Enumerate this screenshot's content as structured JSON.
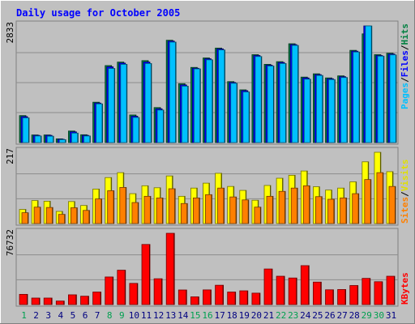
{
  "title": "Daily usage for October 2005",
  "legend": {
    "top": [
      "Pages",
      "Files",
      "Hits"
    ],
    "middle": [
      "Sites",
      "Visits"
    ],
    "bottom": [
      "KBytes"
    ]
  },
  "separator": "/",
  "colors": {
    "background": "#c0c0c0",
    "plot": "#ffffff",
    "title": "#0000ff",
    "hits": "#008040",
    "files": "#0000ff",
    "pages": "#00c0ff",
    "visits": "#ffff00",
    "sites": "#ff8000",
    "kbytes": "#ff0000",
    "weekend_label": "#00a050",
    "weekday_label": "#000080"
  },
  "chart_data": [
    {
      "type": "bar",
      "name": "pages-files-hits",
      "categories": [
        "1",
        "2",
        "3",
        "4",
        "5",
        "6",
        "7",
        "8",
        "9",
        "10",
        "11",
        "12",
        "13",
        "14",
        "15",
        "16",
        "17",
        "18",
        "19",
        "20",
        "21",
        "22",
        "23",
        "24",
        "25",
        "26",
        "27",
        "28",
        "29",
        "30",
        "31"
      ],
      "weekend": [
        "1",
        "8",
        "9",
        "15",
        "16",
        "22",
        "23",
        "29",
        "30"
      ],
      "ylim": [
        0,
        2833
      ],
      "max_label": "2833",
      "series": [
        {
          "name": "Hits",
          "values": [
            655,
            185,
            185,
            90,
            280,
            190,
            980,
            1870,
            1955,
            670,
            1990,
            850,
            2485,
            1430,
            1825,
            2055,
            2295,
            1480,
            1280,
            2135,
            1900,
            1965,
            2400,
            1590,
            1670,
            1570,
            1620,
            2240,
            2640,
            2135,
            2170
          ]
        },
        {
          "name": "Files",
          "values": [
            630,
            175,
            175,
            80,
            260,
            175,
            960,
            1840,
            1930,
            640,
            1955,
            820,
            2465,
            1400,
            1805,
            2035,
            2275,
            1460,
            1260,
            2115,
            1880,
            1945,
            2380,
            1570,
            1650,
            1550,
            1600,
            2220,
            2833,
            2115,
            2150
          ]
        },
        {
          "name": "Pages",
          "values": [
            600,
            160,
            155,
            70,
            230,
            160,
            940,
            1800,
            1900,
            610,
            1920,
            790,
            2440,
            1370,
            1790,
            2010,
            2250,
            1440,
            1230,
            2090,
            1860,
            1920,
            2360,
            1540,
            1630,
            1530,
            1580,
            2200,
            2833,
            2100,
            2130
          ]
        }
      ]
    },
    {
      "type": "bar",
      "name": "sites-visits",
      "categories": [
        "1",
        "2",
        "3",
        "4",
        "5",
        "6",
        "7",
        "8",
        "9",
        "10",
        "11",
        "12",
        "13",
        "14",
        "15",
        "16",
        "17",
        "18",
        "19",
        "20",
        "21",
        "22",
        "23",
        "24",
        "25",
        "26",
        "27",
        "28",
        "29",
        "30",
        "31"
      ],
      "ylim": [
        0,
        217
      ],
      "max_label": "217",
      "series": [
        {
          "name": "Visits",
          "values": [
            43,
            70,
            68,
            37,
            67,
            55,
            105,
            140,
            155,
            91,
            115,
            109,
            145,
            83,
            108,
            123,
            153,
            113,
            101,
            71,
            116,
            138,
            147,
            160,
            112,
            102,
            108,
            127,
            188,
            217,
            158
          ]
        },
        {
          "name": "Sites",
          "values": [
            33,
            50,
            49,
            28,
            48,
            40,
            75,
            100,
            110,
            64,
            83,
            78,
            106,
            61,
            78,
            88,
            108,
            81,
            72,
            50,
            83,
            98,
            108,
            115,
            82,
            74,
            78,
            91,
            134,
            155,
            113
          ]
        }
      ]
    },
    {
      "type": "bar",
      "name": "kbytes",
      "categories": [
        "1",
        "2",
        "3",
        "4",
        "5",
        "6",
        "7",
        "8",
        "9",
        "10",
        "11",
        "12",
        "13",
        "14",
        "15",
        "16",
        "17",
        "18",
        "19",
        "20",
        "21",
        "22",
        "23",
        "24",
        "25",
        "26",
        "27",
        "28",
        "29",
        "30",
        "31"
      ],
      "ylim": [
        0,
        76732
      ],
      "max_label": "76732",
      "series": [
        {
          "name": "KBytes",
          "values": [
            11000,
            7000,
            7000,
            3800,
            10500,
            9000,
            13500,
            29700,
            37000,
            22800,
            64700,
            27800,
            76732,
            15700,
            8300,
            15800,
            20800,
            13500,
            14800,
            12300,
            38300,
            30500,
            28600,
            41900,
            24200,
            15900,
            16200,
            20500,
            28200,
            24600,
            30500
          ]
        }
      ]
    }
  ]
}
